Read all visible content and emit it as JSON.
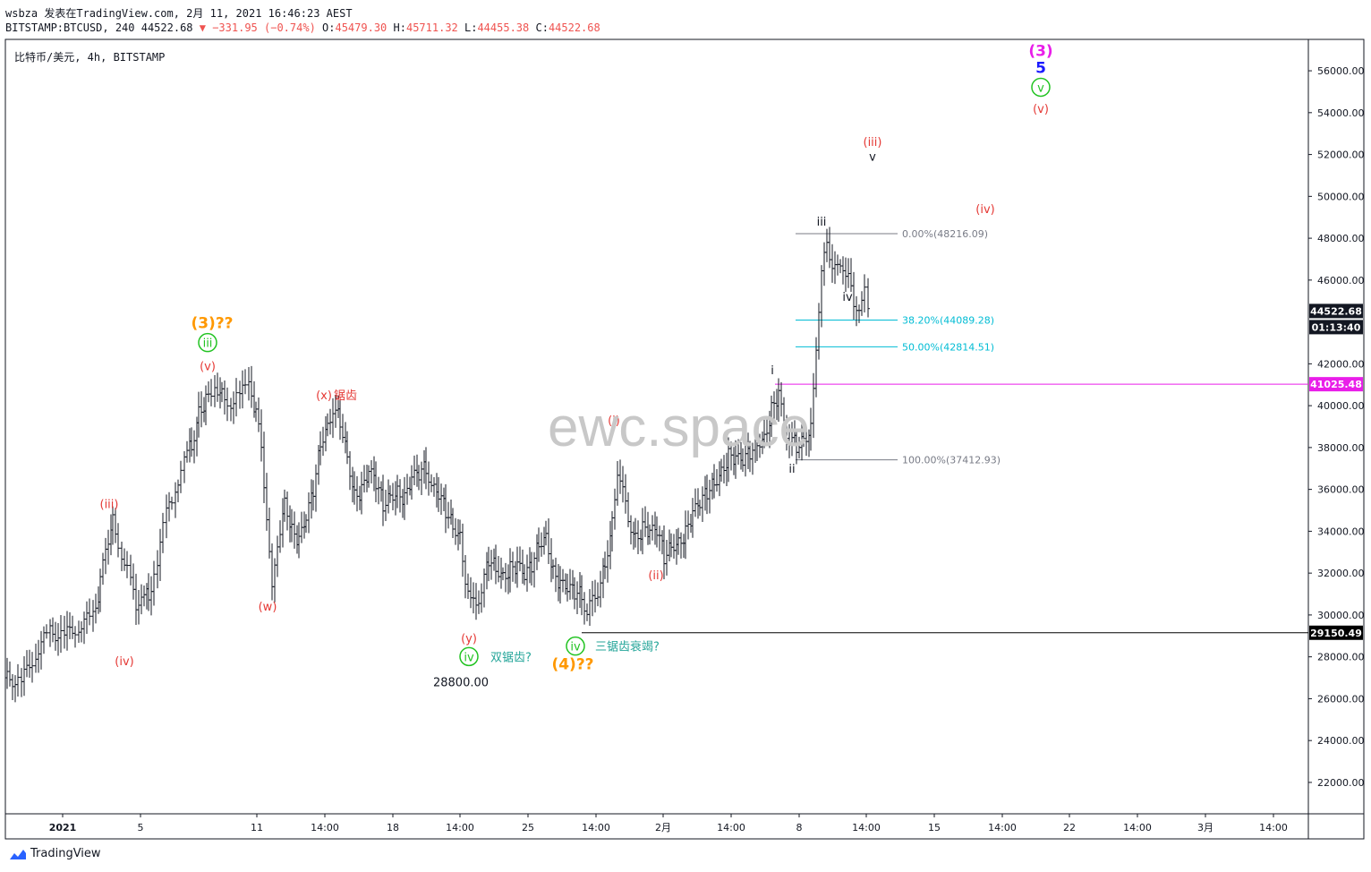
{
  "header": {
    "line1": "wsbza 发表在TradingView.com, 2月 11, 2021 16:46:23 AEST",
    "symbol": "BITSTAMP:BTCUSD, 240 44522.68",
    "change": "▼ −331.95 (−0.74%)",
    "ohlc_o_label": "O:",
    "ohlc_o": "45479.30",
    "ohlc_h_label": "H:",
    "ohlc_h": "45711.32",
    "ohlc_l_label": "L:",
    "ohlc_l": "44455.38",
    "ohlc_c_label": "C:",
    "ohlc_c": "44522.68"
  },
  "symbol_title": "比特币/美元, 4h, BITSTAMP",
  "watermark": "ewc.space",
  "footer_logo": "TradingView",
  "chart_data": {
    "type": "ohlc",
    "title": "比特币/美元, 4h, BITSTAMP",
    "y_ticks": [
      "56000.00",
      "54000.00",
      "52000.00",
      "50000.00",
      "48000.00",
      "46000.00",
      "42000.00",
      "40000.00",
      "38000.00",
      "36000.00",
      "34000.00",
      "32000.00",
      "30000.00",
      "28000.00",
      "26000.00",
      "24000.00",
      "22000.00"
    ],
    "x_ticks": [
      "2021",
      "5",
      "11",
      "14:00",
      "18",
      "14:00",
      "25",
      "14:00",
      "2月",
      "14:00",
      "8",
      "14:00",
      "15",
      "14:00",
      "22",
      "14:00",
      "3月",
      "14:00"
    ],
    "ylim": [
      20500,
      57500
    ],
    "price_tags": [
      {
        "value": "44522.68",
        "style": "dark"
      },
      {
        "value": "01:13:40",
        "style": "dark"
      },
      {
        "value": "41025.48",
        "style": "magenta"
      },
      {
        "value": "29150.49",
        "style": "black"
      }
    ],
    "horizontal_lines": [
      {
        "price": 41025.48,
        "color": "#e91ee9"
      },
      {
        "price": 29150.49,
        "color": "#000000"
      }
    ],
    "fibonacci": [
      {
        "label": "0.00%(48216.09)",
        "price": 48216.09,
        "color": "#787b86"
      },
      {
        "label": "38.20%(44089.28)",
        "price": 44089.28,
        "color": "#00bcd4"
      },
      {
        "label": "50.00%(42814.51)",
        "price": 42814.51,
        "color": "#00bcd4"
      },
      {
        "label": "100.00%(37412.93)",
        "price": 37412.93,
        "color": "#787b86"
      }
    ],
    "annotations": [
      {
        "text": "(3)",
        "color": "#e91ee9",
        "price": 56700,
        "t": 1163
      },
      {
        "text": "5",
        "color": "#1a1aff",
        "price": 55900,
        "t": 1163
      },
      {
        "text": "v",
        "color": "#22c322",
        "price": 55000,
        "t": 1163,
        "circle": true
      },
      {
        "text": "(v)",
        "color": "#e53935",
        "price": 54000,
        "t": 1163
      },
      {
        "text": "(iii)",
        "color": "#e53935",
        "price": 52400,
        "t": 975
      },
      {
        "text": "v",
        "color": "#131722",
        "price": 51700,
        "t": 975
      },
      {
        "text": "(iv)",
        "color": "#e53935",
        "price": 49200,
        "t": 1101
      },
      {
        "text": "iii",
        "color": "#131722",
        "price": 48600,
        "t": 918
      },
      {
        "text": "iv",
        "color": "#131722",
        "price": 45000,
        "t": 947
      },
      {
        "text": "i",
        "color": "#131722",
        "price": 41500,
        "t": 863
      },
      {
        "text": "ii",
        "color": "#131722",
        "price": 36800,
        "t": 885
      },
      {
        "text": "(3)??",
        "color": "#ff9800",
        "price": 43700,
        "t": 237
      },
      {
        "text": "iii",
        "color": "#22c322",
        "price": 42800,
        "t": 232,
        "circle": true
      },
      {
        "text": "(v)",
        "color": "#e53935",
        "price": 41700,
        "t": 232
      },
      {
        "text": "(x)",
        "color": "#e53935",
        "price": 40300,
        "t": 362
      },
      {
        "text": "锯齿",
        "color": "#e53935",
        "price": 40300,
        "t": 386
      },
      {
        "text": "(i)",
        "color": "#e53935",
        "price": 39100,
        "t": 686
      },
      {
        "text": "(iii)",
        "color": "#e53935",
        "price": 35100,
        "t": 122
      },
      {
        "text": "(ii)",
        "color": "#e53935",
        "price": 31700,
        "t": 733
      },
      {
        "text": "(w)",
        "color": "#e53935",
        "price": 30200,
        "t": 299
      },
      {
        "text": "(iv)",
        "color": "#e53935",
        "price": 27600,
        "t": 139
      },
      {
        "text": "(y)",
        "color": "#e53935",
        "price": 28700,
        "t": 524
      },
      {
        "text": "iv",
        "color": "#22c322",
        "price": 27800,
        "t": 524,
        "circle": true
      },
      {
        "text": "双锯齿?",
        "color": "#26a69a",
        "price": 27800,
        "t": 548
      },
      {
        "text": "28800.00",
        "color": "#131722",
        "price": 26600,
        "t": 515
      },
      {
        "text": "iv",
        "color": "#22c322",
        "price": 28300,
        "t": 643,
        "circle": true
      },
      {
        "text": "三锯齿衰竭?",
        "color": "#26a69a",
        "price": 28300,
        "t": 665
      },
      {
        "text": "(4)??",
        "color": "#ff9800",
        "price": 27400,
        "t": 640
      }
    ],
    "series": [
      {
        "name": "BTCUSD",
        "points": [
          [
            8,
            27000
          ],
          [
            24,
            26800
          ],
          [
            40,
            28200
          ],
          [
            56,
            29200
          ],
          [
            72,
            29000
          ],
          [
            88,
            29500
          ],
          [
            104,
            29900
          ],
          [
            112,
            31500
          ],
          [
            118,
            33300
          ],
          [
            126,
            34600
          ],
          [
            136,
            33000
          ],
          [
            146,
            31800
          ],
          [
            152,
            30000
          ],
          [
            158,
            31200
          ],
          [
            166,
            30900
          ],
          [
            176,
            32600
          ],
          [
            186,
            34800
          ],
          [
            196,
            35800
          ],
          [
            206,
            37900
          ],
          [
            214,
            38100
          ],
          [
            222,
            39800
          ],
          [
            230,
            40200
          ],
          [
            240,
            41000
          ],
          [
            248,
            40600
          ],
          [
            258,
            40200
          ],
          [
            268,
            40600
          ],
          [
            278,
            40800
          ],
          [
            286,
            39600
          ],
          [
            292,
            38000
          ],
          [
            298,
            34800
          ],
          [
            304,
            31000
          ],
          [
            310,
            33500
          ],
          [
            318,
            35500
          ],
          [
            326,
            34000
          ],
          [
            334,
            33500
          ],
          [
            342,
            34600
          ],
          [
            350,
            36000
          ],
          [
            358,
            38300
          ],
          [
            366,
            39100
          ],
          [
            372,
            39900
          ],
          [
            380,
            39300
          ],
          [
            388,
            37600
          ],
          [
            396,
            35700
          ],
          [
            404,
            35900
          ],
          [
            412,
            36800
          ],
          [
            420,
            36300
          ],
          [
            428,
            35300
          ],
          [
            436,
            35800
          ],
          [
            444,
            35900
          ],
          [
            452,
            35500
          ],
          [
            460,
            36500
          ],
          [
            468,
            36700
          ],
          [
            476,
            37100
          ],
          [
            482,
            36000
          ],
          [
            490,
            35700
          ],
          [
            498,
            35000
          ],
          [
            506,
            34300
          ],
          [
            514,
            33800
          ],
          [
            520,
            31800
          ],
          [
            526,
            30500
          ],
          [
            532,
            30600
          ],
          [
            538,
            31200
          ],
          [
            546,
            32700
          ],
          [
            554,
            32300
          ],
          [
            562,
            31900
          ],
          [
            570,
            32200
          ],
          [
            578,
            32300
          ],
          [
            586,
            31800
          ],
          [
            594,
            32400
          ],
          [
            602,
            33500
          ],
          [
            610,
            33800
          ],
          [
            618,
            32000
          ],
          [
            626,
            31400
          ],
          [
            634,
            31200
          ],
          [
            642,
            31100
          ],
          [
            650,
            31000
          ],
          [
            656,
            30000
          ],
          [
            662,
            30700
          ],
          [
            668,
            31200
          ],
          [
            676,
            32500
          ],
          [
            684,
            34500
          ],
          [
            690,
            37000
          ],
          [
            696,
            35800
          ],
          [
            702,
            34600
          ],
          [
            710,
            33700
          ],
          [
            718,
            34100
          ],
          [
            726,
            33900
          ],
          [
            734,
            34000
          ],
          [
            742,
            32800
          ],
          [
            750,
            33400
          ],
          [
            758,
            33500
          ],
          [
            766,
            33900
          ],
          [
            774,
            34800
          ],
          [
            782,
            35300
          ],
          [
            790,
            35900
          ],
          [
            798,
            36400
          ],
          [
            806,
            36900
          ],
          [
            814,
            37600
          ],
          [
            822,
            37400
          ],
          [
            830,
            37300
          ],
          [
            838,
            37800
          ],
          [
            846,
            38300
          ],
          [
            854,
            38500
          ],
          [
            862,
            39800
          ],
          [
            870,
            40500
          ],
          [
            876,
            39000
          ],
          [
            882,
            38500
          ],
          [
            890,
            38100
          ],
          [
            898,
            38500
          ],
          [
            906,
            38900
          ],
          [
            912,
            43000
          ],
          [
            918,
            46200
          ],
          [
            924,
            47800
          ],
          [
            930,
            46800
          ],
          [
            936,
            46400
          ],
          [
            942,
            46700
          ],
          [
            948,
            46300
          ],
          [
            954,
            44500
          ],
          [
            960,
            44900
          ],
          [
            966,
            45400
          ],
          [
            970,
            44522
          ]
        ]
      }
    ]
  }
}
